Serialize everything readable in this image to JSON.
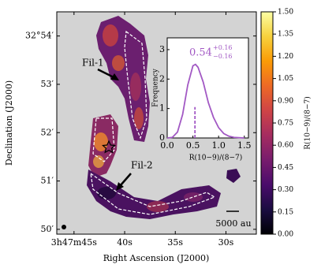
{
  "chart_data": [
    {
      "type": "image",
      "xlabel": "Right Ascension (J2000)",
      "ylabel": "Declination (J2000)",
      "xlim": [
        46.7,
        27.0
      ],
      "ylim": [
        49.9,
        54.5
      ],
      "xticks": [
        {
          "value": 45,
          "label": "3h47m45s"
        },
        {
          "value": 40,
          "label": "40s"
        },
        {
          "value": 35,
          "label": "35s"
        },
        {
          "value": 30,
          "label": "30s"
        }
      ],
      "yticks": [
        {
          "value": 54,
          "label": "32°54′"
        },
        {
          "value": 53,
          "label": "53′"
        },
        {
          "value": 52,
          "label": "52′"
        },
        {
          "value": 51,
          "label": "51′"
        },
        {
          "value": 50,
          "label": "50′"
        }
      ],
      "annotations": [
        "Fil-1",
        "Fil-2",
        "5000 au"
      ],
      "colorbar": {
        "label": "R(10−9)/(8−7)",
        "colormap": "inferno",
        "lim": [
          0,
          1.5
        ],
        "ticks": [
          {
            "value": 0,
            "label": "0.00"
          },
          {
            "value": 0.15,
            "label": "0.15"
          },
          {
            "value": 0.3,
            "label": "0.30"
          },
          {
            "value": 0.45,
            "label": "0.45"
          },
          {
            "value": 0.6,
            "label": "0.60"
          },
          {
            "value": 0.75,
            "label": "0.75"
          },
          {
            "value": 0.9,
            "label": "0.90"
          },
          {
            "value": 1.05,
            "label": "1.05"
          },
          {
            "value": 1.2,
            "label": "1.20"
          },
          {
            "value": 1.35,
            "label": "1.35"
          },
          {
            "value": 1.5,
            "label": "1.50"
          }
        ]
      }
    },
    {
      "type": "line",
      "xlabel": "R(10−9)/(8−7)",
      "ylabel": "Frequency",
      "median": 0.54,
      "median_marker_top": 1.05,
      "err_plus": {
        "value": 0.16,
        "label": "+0.16"
      },
      "err_minus": {
        "value": 0.16,
        "label": "−0.16"
      },
      "x": [
        0,
        0.1,
        0.2,
        0.3,
        0.4,
        0.5,
        0.55,
        0.6,
        0.7,
        0.8,
        0.9,
        1.0,
        1.1,
        1.2,
        1.3,
        1.4,
        1.5
      ],
      "series": [
        {
          "color": "#a259c4",
          "values": [
            0,
            0.02,
            0.2,
            0.8,
            1.8,
            2.45,
            2.5,
            2.4,
            1.9,
            1.2,
            0.7,
            0.35,
            0.15,
            0.06,
            0.02,
            0.01,
            0
          ]
        }
      ],
      "xlim": [
        0,
        1.58
      ],
      "ylim": [
        0,
        3.4
      ],
      "xticks": [
        {
          "value": 0,
          "label": "0.0"
        },
        0.5,
        {
          "value": 1,
          "label": "1.0"
        },
        1.5
      ],
      "yticks": [
        0,
        1,
        2,
        3
      ]
    }
  ]
}
